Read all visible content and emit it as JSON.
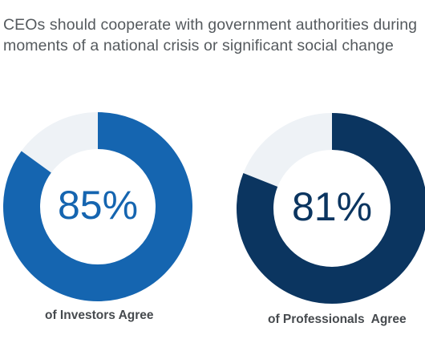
{
  "title": "CEOs should cooperate with government authorities during moments of a national crisis or significant social change",
  "chart_data": [
    {
      "type": "pie",
      "variant": "donut",
      "value": 85,
      "remainder": 15,
      "label": "85%",
      "caption": "of Investors Agree",
      "color": "#1565b0",
      "track_color": "#eef2f6",
      "label_color": "#1565b0"
    },
    {
      "type": "pie",
      "variant": "donut",
      "value": 81,
      "remainder": 19,
      "label": "81%",
      "caption": "of Professionals  Agree",
      "color": "#0b3560",
      "track_color": "#eef2f6",
      "label_color": "#0b3560"
    }
  ]
}
